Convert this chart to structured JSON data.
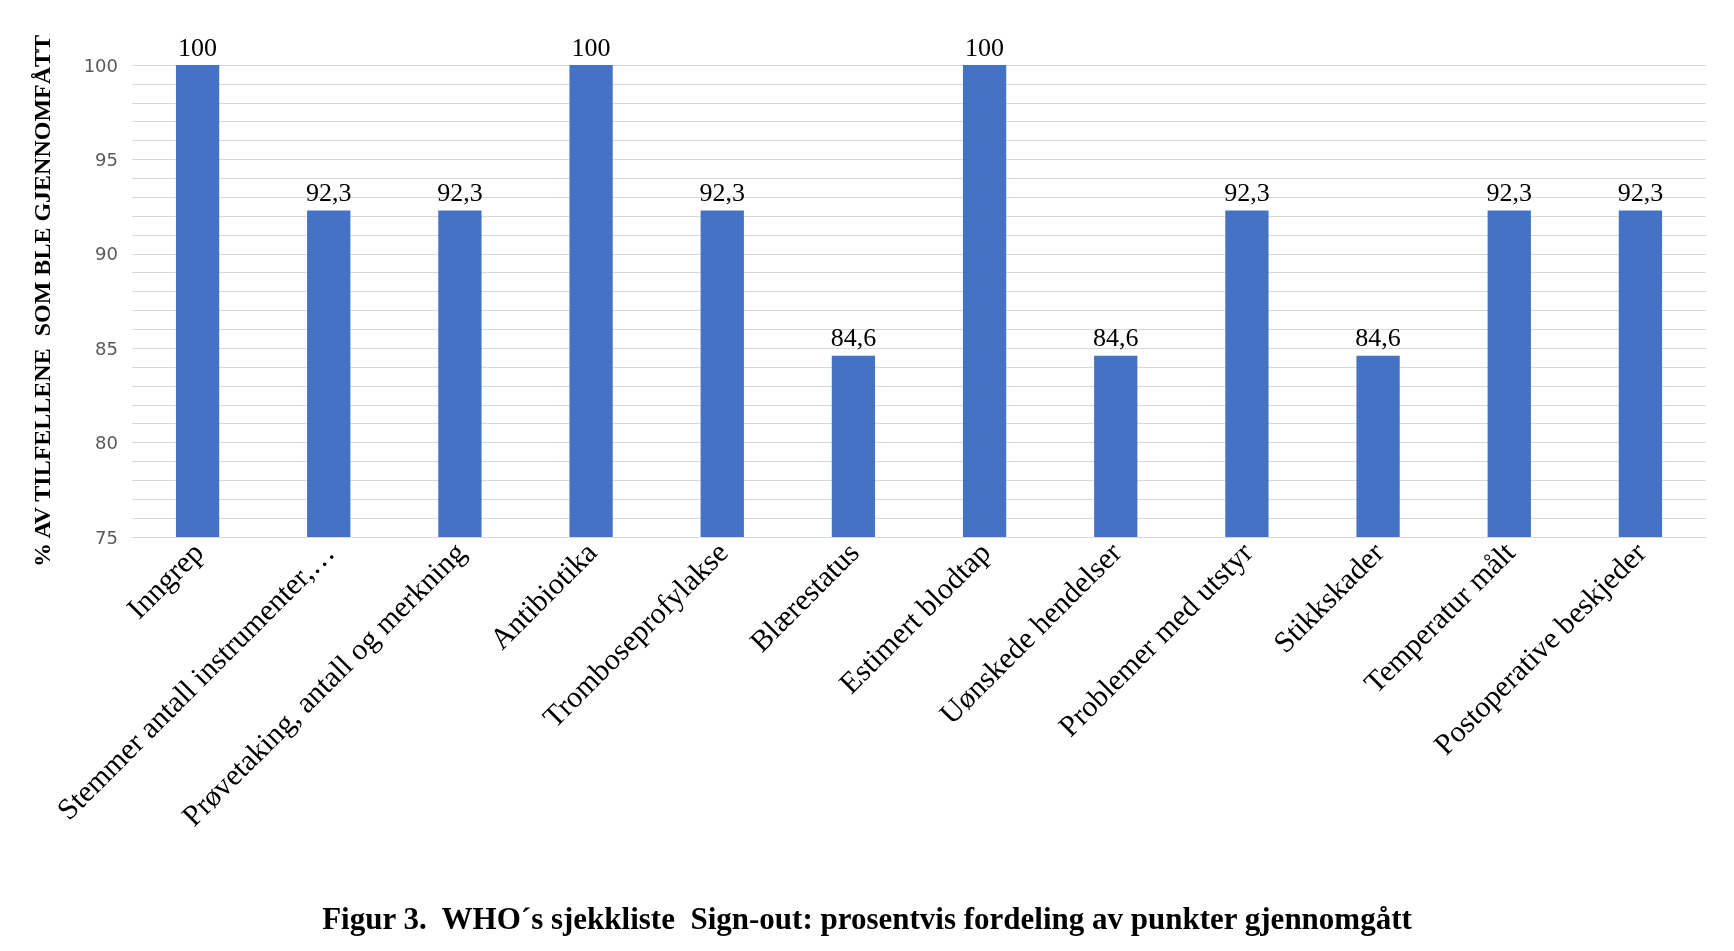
{
  "chart_data": {
    "type": "bar",
    "title": "Figur 3.  WHO´s sjekkliste  Sign-out: prosentvis fordeling av punkter gjennomgått",
    "ylabel": "% AV TILFELLENE  SOM BLE GJENNOMFÅTT",
    "categories": [
      "Inngrep",
      "Stemmer antall instrumenter,…",
      "Prøvetaking, antall og merkning",
      "Antibiotika",
      "Tromboseprofylakse",
      "Blærestatus",
      "Estimert blodtap",
      "Uønskede hendelser",
      "Problemer med utstyr",
      "Stikkskader",
      "Temperatur målt",
      "Postoperative beskjeder"
    ],
    "values": [
      100,
      92.3,
      92.3,
      100,
      92.3,
      84.6,
      100,
      84.6,
      92.3,
      84.6,
      92.3,
      92.3
    ],
    "value_labels": [
      "100",
      "92,3",
      "92,3",
      "100",
      "92,3",
      "84,6",
      "100",
      "84,6",
      "92,3",
      "84,6",
      "92,3",
      "92,3"
    ],
    "color": "#4472c4",
    "ylim": [
      75,
      100
    ],
    "yticks": [
      75,
      {
        "value": 76,
        "label": null
      },
      {
        "value": 77,
        "label": null
      },
      {
        "value": 78,
        "label": null
      },
      {
        "value": 79,
        "label": null
      },
      80,
      {
        "value": 81,
        "label": null
      },
      {
        "value": 82,
        "label": null
      },
      {
        "value": 83,
        "label": null
      },
      {
        "value": 84,
        "label": null
      },
      85,
      {
        "value": 86,
        "label": null
      },
      {
        "value": 87,
        "label": null
      },
      {
        "value": 88,
        "label": null
      },
      {
        "value": 89,
        "label": null
      },
      90,
      {
        "value": 91,
        "label": null
      },
      {
        "value": 92,
        "label": null
      },
      {
        "value": 93,
        "label": null
      },
      {
        "value": 94,
        "label": null
      },
      95,
      {
        "value": 96,
        "label": null
      },
      {
        "value": 97,
        "label": null
      },
      {
        "value": 98,
        "label": null
      },
      {
        "value": 99,
        "label": null
      },
      100
    ],
    "grid": true
  }
}
